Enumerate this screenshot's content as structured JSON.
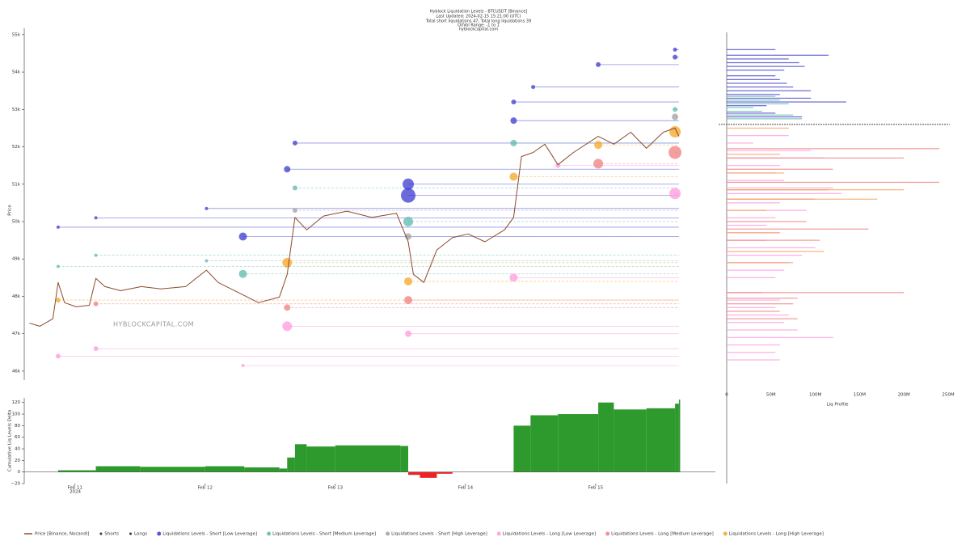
{
  "chart_data": [
    {
      "type": "line",
      "title": "Hyblock Liquidation Levels - BTCUSDT [Binance]",
      "subtitle": [
        "Last Updated: 2024-02-15 15:21:00 (UTC)",
        "Total short liquidations 47, Total long liquidations 39",
        "OI/Vol Range: -1 to 1",
        "hyblockcapital.com"
      ],
      "ylabel": "Price",
      "watermark": "HYBLOCKCAPITAL.COM",
      "xlim": [
        10.61,
        15.92
      ],
      "ylim": [
        45760,
        55170
      ],
      "yticks": [
        {
          "value": 46000,
          "label": "46k"
        },
        {
          "value": 47000,
          "label": "47k"
        },
        {
          "value": 48000,
          "label": "48k"
        },
        {
          "value": 49000,
          "label": "49k"
        },
        {
          "value": 50000,
          "label": "50k"
        },
        {
          "value": 51000,
          "label": "51k"
        },
        {
          "value": 52000,
          "label": "52k"
        },
        {
          "value": 53000,
          "label": "53k"
        },
        {
          "value": 54000,
          "label": "54k"
        },
        {
          "value": 55000,
          "label": "55k"
        }
      ],
      "x": [
        10.65,
        10.73,
        10.83,
        10.87,
        10.92,
        11.01,
        11.11,
        11.16,
        11.23,
        11.35,
        11.51,
        11.66,
        11.85,
        12.01,
        12.1,
        12.29,
        12.41,
        12.57,
        12.63,
        12.69,
        12.78,
        12.91,
        13.09,
        13.28,
        13.47,
        13.56,
        13.6,
        13.68,
        13.78,
        13.9,
        14.02,
        14.15,
        14.3,
        14.37,
        14.43,
        14.52,
        14.61,
        14.71,
        14.83,
        15.02,
        15.14,
        15.27,
        15.39,
        15.52,
        15.61,
        15.64
      ],
      "series": [
        {
          "name": "Price [Binance, Nocandl]",
          "color": "#8b4a2b",
          "values": [
            47280,
            47200,
            47400,
            48370,
            47830,
            47720,
            47760,
            48480,
            48260,
            48150,
            48260,
            48200,
            48260,
            48700,
            48370,
            48040,
            47830,
            47980,
            48590,
            50110,
            49780,
            50150,
            50280,
            50110,
            50220,
            49460,
            48590,
            48370,
            49240,
            49570,
            49670,
            49460,
            49780,
            50110,
            51740,
            51850,
            52070,
            51520,
            51850,
            52280,
            52070,
            52390,
            51960,
            52390,
            52500,
            52280
          ]
        }
      ],
      "markers": [
        {
          "name": "Shorts",
          "color": "#111111"
        },
        {
          "name": "Longs",
          "color": "#111111"
        }
      ],
      "levels": [
        {
          "name": "Liquidations Levels - Short [Low Leverage]",
          "color": "#3a3ad0",
          "line_style": "solid",
          "x": [
            10.87,
            11.16,
            12.01,
            12.29,
            12.69,
            12.63,
            13.56,
            13.56,
            14.37,
            14.37,
            14.52,
            15.02,
            15.61,
            15.61
          ],
          "values": [
            49850,
            50100,
            50350,
            49600,
            52100,
            51400,
            50700,
            51000,
            52700,
            53200,
            53600,
            54200,
            54400,
            54600
          ],
          "sizes": [
            2,
            2,
            2,
            5,
            3,
            4,
            9,
            7,
            4,
            3,
            2.5,
            3,
            3,
            2.5
          ]
        },
        {
          "name": "Liquidations Levels - Short [Medium Leverage]",
          "color": "#5fb8ad",
          "line_style": "dashed",
          "x": [
            10.87,
            11.16,
            12.01,
            12.29,
            12.69,
            13.56,
            14.37,
            15.61
          ],
          "values": [
            48800,
            49100,
            48950,
            48600,
            50900,
            50000,
            52100,
            53000
          ],
          "sizes": [
            2,
            2,
            2,
            5,
            3,
            6,
            4,
            3
          ]
        },
        {
          "name": "Liquidations Levels - Short [High Leverage]",
          "color": "#a0a0a0",
          "line_style": "dashed",
          "x": [
            12.69,
            13.56,
            15.61
          ],
          "values": [
            50300,
            49600,
            52800
          ],
          "sizes": [
            3,
            4,
            4
          ]
        },
        {
          "name": "Liquidations Levels - Long [Low Leverage]",
          "color": "#ff99dd",
          "line_style": "solid",
          "x": [
            10.87,
            11.16,
            12.29,
            12.63,
            13.56,
            14.37,
            15.61,
            14.71
          ],
          "values": [
            46400,
            46600,
            46150,
            47200,
            47000,
            48500,
            50750,
            51500
          ],
          "sizes": [
            3,
            3,
            2,
            6,
            4,
            5,
            7,
            3
          ]
        },
        {
          "name": "Liquidations Levels - Long [Medium Leverage]",
          "color": "#f07f7f",
          "line_style": "dashed",
          "x": [
            11.16,
            12.63,
            13.56,
            15.02,
            15.61
          ],
          "values": [
            47800,
            47700,
            47900,
            51550,
            51850
          ],
          "sizes": [
            3,
            4,
            5,
            6,
            8
          ]
        },
        {
          "name": "Liquidations Levels - Long [High Leverage]",
          "color": "#f5a623",
          "line_style": "dashed",
          "x": [
            10.87,
            12.63,
            13.56,
            14.37,
            15.02,
            15.61
          ],
          "values": [
            47900,
            48900,
            48400,
            51200,
            52050,
            52400
          ],
          "sizes": [
            3,
            6,
            5,
            5,
            5,
            7
          ]
        }
      ]
    },
    {
      "type": "area",
      "ylabel": "Cumulative Liq Levels Delta",
      "xlim": [
        10.61,
        15.92
      ],
      "xticks": [
        {
          "value": 11,
          "label": "Feb 11"
        },
        {
          "value": 12,
          "label": "Feb 12"
        },
        {
          "value": 13,
          "label": "Feb 13"
        },
        {
          "value": 14,
          "label": "Feb 14"
        },
        {
          "value": 15,
          "label": "Feb 15"
        }
      ],
      "x_year": "2024",
      "ylim": [
        -20,
        128
      ],
      "yticks": [
        {
          "value": -20,
          "label": "−20"
        },
        0,
        20,
        40,
        60,
        80,
        100,
        120
      ],
      "color": "#2e9a2e",
      "negative_color": "#ee2222",
      "x": [
        10.65,
        10.87,
        11.16,
        11.5,
        12.0,
        12.3,
        12.57,
        12.63,
        12.69,
        12.78,
        13.0,
        13.5,
        13.56,
        13.65,
        13.78,
        13.9,
        14.37,
        14.5,
        14.71,
        15.02,
        15.14,
        15.39,
        15.61,
        15.64
      ],
      "values": [
        0,
        3,
        10,
        9,
        10,
        8,
        6,
        25,
        48,
        44,
        46,
        45,
        -5,
        -10,
        -3,
        0,
        80,
        98,
        100,
        120,
        108,
        110,
        118,
        125
      ]
    },
    {
      "type": "bar",
      "xlabel": "Liq Profile",
      "xlim": [
        0,
        250000000
      ],
      "xticks": [
        0,
        {
          "value": 50000000,
          "label": "50M"
        },
        {
          "value": 100000000,
          "label": "100M"
        },
        {
          "value": 150000000,
          "label": "150M"
        },
        {
          "value": 200000000,
          "label": "200M"
        },
        {
          "value": 250000000,
          "label": "250M"
        }
      ],
      "current_price": 52600,
      "series": [
        {
          "color": "#4444cc",
          "prices": [
            54600,
            54450,
            54350,
            54250,
            54150,
            54050,
            53900,
            53800,
            53700,
            53600,
            53500,
            53400,
            53300,
            53200,
            53100,
            52900,
            52800
          ],
          "values": [
            55000000,
            115000000,
            70000000,
            82000000,
            88000000,
            65000000,
            55000000,
            60000000,
            68000000,
            75000000,
            95000000,
            60000000,
            95000000,
            135000000,
            45000000,
            55000000,
            85000000
          ]
        },
        {
          "color": "#5fb8ad",
          "prices": [
            53350,
            53250,
            53150,
            53050,
            52950,
            52850,
            52750
          ],
          "values": [
            55000000,
            60000000,
            70000000,
            30000000,
            40000000,
            75000000,
            85000000
          ]
        },
        {
          "color": "#ff99dd",
          "prices": [
            52300,
            52100,
            51900,
            51700,
            51500,
            51300,
            51100,
            50900,
            50750,
            50500,
            50300,
            50100,
            49900,
            49700,
            49500,
            49300,
            49100,
            48900,
            48700,
            48500,
            48100,
            47900,
            47700,
            47500,
            47300,
            47100,
            46900,
            46700,
            46500,
            46300
          ],
          "values": [
            70000000,
            30000000,
            95000000,
            110000000,
            60000000,
            55000000,
            65000000,
            120000000,
            130000000,
            60000000,
            90000000,
            55000000,
            45000000,
            60000000,
            45000000,
            100000000,
            85000000,
            70000000,
            65000000,
            55000000,
            40000000,
            60000000,
            55000000,
            70000000,
            65000000,
            80000000,
            120000000,
            60000000,
            55000000,
            60000000
          ]
        },
        {
          "color": "#f07f7f",
          "prices": [
            51950,
            51700,
            51400,
            51050,
            50850,
            50600,
            50000,
            49800,
            49500,
            48100,
            47950,
            47800,
            47600,
            47400
          ],
          "values": [
            240000000,
            200000000,
            120000000,
            240000000,
            115000000,
            100000000,
            90000000,
            160000000,
            105000000,
            200000000,
            80000000,
            75000000,
            60000000,
            80000000
          ]
        },
        {
          "color": "#f5a05a",
          "prices": [
            52500,
            51800,
            51300,
            50850,
            50600,
            50300,
            49700,
            49200,
            48900
          ],
          "values": [
            70000000,
            60000000,
            65000000,
            200000000,
            170000000,
            45000000,
            60000000,
            110000000,
            75000000
          ]
        }
      ]
    }
  ]
}
